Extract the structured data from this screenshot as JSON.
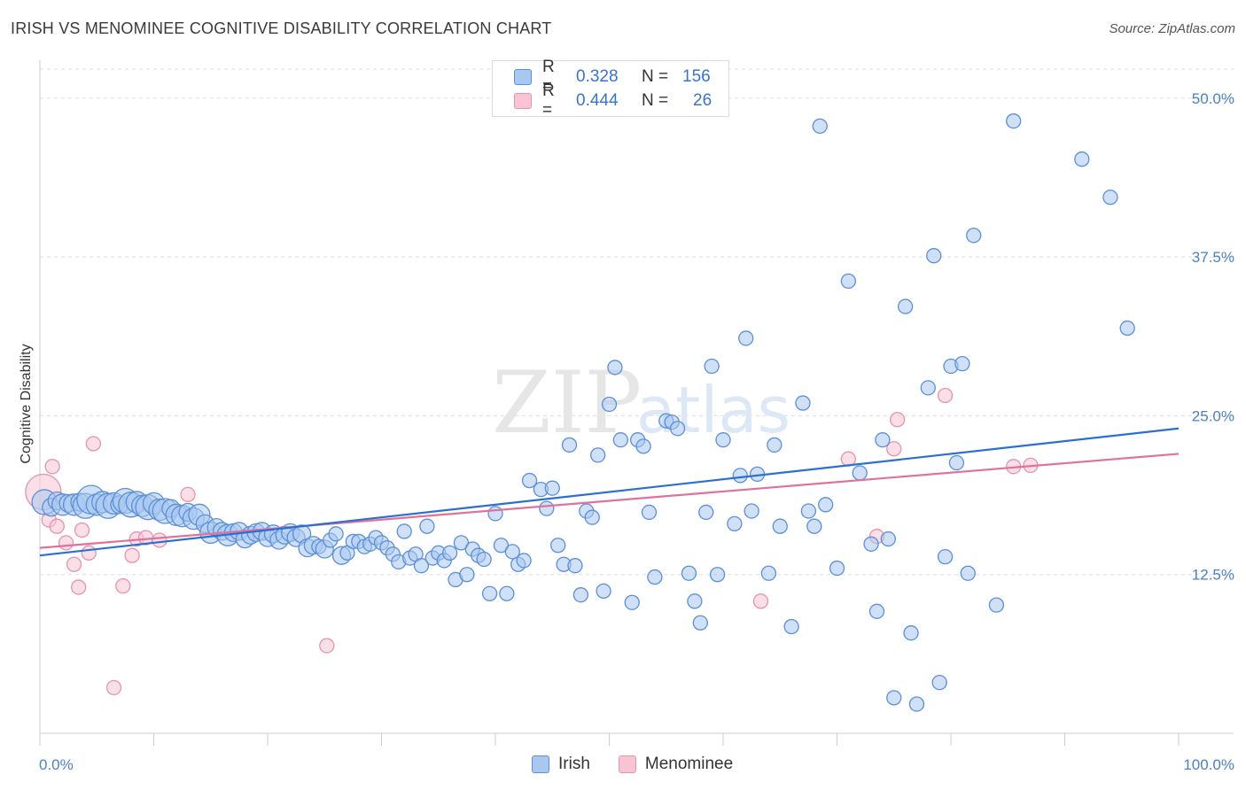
{
  "title": "IRISH VS MENOMINEE COGNITIVE DISABILITY CORRELATION CHART",
  "source": "Source: ZipAtlas.com",
  "watermark": {
    "part1": "ZIP",
    "part2": "atlas"
  },
  "colors": {
    "irish_fill": "#a9c8f0",
    "irish_stroke": "#5b8fd8",
    "irish_line": "#2b6fd0",
    "menominee_fill": "#f8c4d4",
    "menominee_stroke": "#e593ad",
    "menominee_line": "#e0719a",
    "tick_text": "#4a80c8",
    "grid": "#dddddd"
  },
  "legend": {
    "rows": [
      {
        "r_label": "R =",
        "r_value": "0.328",
        "n_label": "N =",
        "n_value": "156"
      },
      {
        "r_label": "R =",
        "r_value": "0.444",
        "n_label": "N =",
        "n_value": "26"
      }
    ]
  },
  "bottom_legend": {
    "irish": "Irish",
    "menominee": "Menominee"
  },
  "chart_data": {
    "type": "scatter",
    "title": "IRISH VS MENOMINEE COGNITIVE DISABILITY CORRELATION CHART",
    "xlabel": "",
    "ylabel": "Cognitive Disability",
    "xlim": [
      0,
      100
    ],
    "ylim": [
      0,
      52.5
    ],
    "x_tick_labels": [
      "0.0%",
      "100.0%"
    ],
    "y_ticks": [
      12.5,
      25.0,
      37.5,
      50.0
    ],
    "y_tick_labels": [
      "12.5%",
      "25.0%",
      "37.5%",
      "50.0%"
    ],
    "grid": true,
    "legend_position": "top-center",
    "series": [
      {
        "name": "Irish",
        "r": 0.328,
        "n": 156,
        "trend": {
          "x": [
            0,
            100
          ],
          "y": [
            14.0,
            24.0
          ]
        },
        "points": [
          [
            0.4,
            18.2,
            14
          ],
          [
            1,
            17.8,
            10
          ],
          [
            1.5,
            18.3,
            10
          ],
          [
            2,
            18,
            12
          ],
          [
            2.5,
            18.1,
            10
          ],
          [
            3,
            18,
            12
          ],
          [
            3.5,
            18.2,
            10
          ],
          [
            4,
            17.9,
            14
          ],
          [
            4.5,
            18.4,
            16
          ],
          [
            5,
            18,
            12
          ],
          [
            5.5,
            18.2,
            12
          ],
          [
            6,
            17.9,
            14
          ],
          [
            6.5,
            18.1,
            12
          ],
          [
            7,
            18,
            10
          ],
          [
            7.5,
            18.3,
            14
          ],
          [
            8,
            18,
            14
          ],
          [
            8.5,
            18.2,
            12
          ],
          [
            9,
            17.9,
            12
          ],
          [
            9.5,
            17.8,
            14
          ],
          [
            10,
            18.1,
            12
          ],
          [
            10.5,
            17.6,
            12
          ],
          [
            11,
            17.5,
            14
          ],
          [
            11.5,
            17.7,
            10
          ],
          [
            12,
            17.2,
            12
          ],
          [
            12.5,
            17.1,
            12
          ],
          [
            13,
            17.4,
            10
          ],
          [
            13.5,
            16.9,
            12
          ],
          [
            14,
            17.2,
            12
          ],
          [
            14.5,
            16.5,
            10
          ],
          [
            15,
            15.8,
            12
          ],
          [
            15.5,
            16.2,
            10
          ],
          [
            16,
            15.9,
            10
          ],
          [
            16.5,
            15.6,
            12
          ],
          [
            17,
            15.8,
            10
          ],
          [
            17.5,
            15.9,
            10
          ],
          [
            18,
            15.3,
            10
          ],
          [
            18.5,
            15.6,
            10
          ],
          [
            19,
            15.8,
            10
          ],
          [
            19.5,
            15.9,
            10
          ],
          [
            20,
            15.4,
            10
          ],
          [
            20.5,
            15.7,
            10
          ],
          [
            21,
            15.2,
            10
          ],
          [
            21.5,
            15.6,
            10
          ],
          [
            22,
            15.8,
            10
          ],
          [
            22.5,
            15.4,
            10
          ],
          [
            23,
            15.7,
            10
          ],
          [
            23.5,
            14.6,
            10
          ],
          [
            24,
            14.8,
            10
          ],
          [
            24.5,
            14.7,
            8
          ],
          [
            25,
            14.5,
            10
          ],
          [
            25.5,
            15.2,
            8
          ],
          [
            26,
            15.7,
            8
          ],
          [
            26.5,
            14,
            10
          ],
          [
            27,
            14.2,
            8
          ],
          [
            27.5,
            15.1,
            8
          ],
          [
            28,
            15.1,
            8
          ],
          [
            28.5,
            14.7,
            8
          ],
          [
            29,
            14.9,
            8
          ],
          [
            29.5,
            15.4,
            8
          ],
          [
            30,
            15,
            8
          ],
          [
            30.5,
            14.6,
            8
          ],
          [
            31,
            14.1,
            8
          ],
          [
            31.5,
            13.5,
            8
          ],
          [
            32,
            15.9,
            8
          ],
          [
            32.5,
            13.8,
            8
          ],
          [
            33,
            14.1,
            8
          ],
          [
            33.5,
            13.2,
            8
          ],
          [
            34,
            16.3,
            8
          ],
          [
            34.5,
            13.8,
            8
          ],
          [
            35,
            14.2,
            8
          ],
          [
            35.5,
            13.6,
            8
          ],
          [
            36,
            14.2,
            8
          ],
          [
            36.5,
            12.1,
            8
          ],
          [
            37,
            15,
            8
          ],
          [
            37.5,
            12.5,
            8
          ],
          [
            38,
            14.5,
            8
          ],
          [
            38.5,
            14,
            8
          ],
          [
            39,
            13.7,
            8
          ],
          [
            39.5,
            11,
            8
          ],
          [
            40,
            17.3,
            8
          ],
          [
            40.5,
            14.8,
            8
          ],
          [
            41,
            11,
            8
          ],
          [
            41.5,
            14.3,
            8
          ],
          [
            42,
            13.3,
            8
          ],
          [
            42.5,
            13.6,
            8
          ],
          [
            43,
            19.9,
            8
          ],
          [
            44,
            19.2,
            8
          ],
          [
            44.5,
            17.7,
            8
          ],
          [
            45,
            19.3,
            8
          ],
          [
            45.5,
            14.8,
            8
          ],
          [
            46,
            13.3,
            8
          ],
          [
            46.5,
            22.7,
            8
          ],
          [
            47,
            13.2,
            8
          ],
          [
            47.5,
            10.9,
            8
          ],
          [
            48,
            17.5,
            8
          ],
          [
            48.5,
            17,
            8
          ],
          [
            49,
            21.9,
            8
          ],
          [
            49.5,
            11.2,
            8
          ],
          [
            50,
            25.9,
            8
          ],
          [
            50.5,
            28.8,
            8
          ],
          [
            51,
            23.1,
            8
          ],
          [
            52,
            10.3,
            8
          ],
          [
            52.5,
            23.1,
            8
          ],
          [
            53,
            22.6,
            8
          ],
          [
            53.5,
            17.4,
            8
          ],
          [
            54,
            12.3,
            8
          ],
          [
            55,
            24.6,
            8
          ],
          [
            55.5,
            24.5,
            8
          ],
          [
            56,
            24.0,
            8
          ],
          [
            57,
            12.6,
            8
          ],
          [
            57.5,
            10.4,
            8
          ],
          [
            58,
            8.7,
            8
          ],
          [
            58.5,
            17.4,
            8
          ],
          [
            59,
            28.9,
            8
          ],
          [
            59.5,
            12.5,
            8
          ],
          [
            60,
            23.1,
            8
          ],
          [
            61,
            16.5,
            8
          ],
          [
            61.5,
            20.3,
            8
          ],
          [
            62,
            31.1,
            8
          ],
          [
            62.5,
            17.5,
            8
          ],
          [
            63,
            20.4,
            8
          ],
          [
            64,
            12.6,
            8
          ],
          [
            64.5,
            22.7,
            8
          ],
          [
            65,
            16.3,
            8
          ],
          [
            66,
            8.4,
            8
          ],
          [
            67,
            26,
            8
          ],
          [
            67.5,
            17.5,
            8
          ],
          [
            68,
            16.3,
            8
          ],
          [
            68.5,
            47.8,
            8
          ],
          [
            69,
            18,
            8
          ],
          [
            70,
            13,
            8
          ],
          [
            71,
            35.6,
            8
          ],
          [
            72,
            20.5,
            8
          ],
          [
            73,
            14.9,
            8
          ],
          [
            73.5,
            9.6,
            8
          ],
          [
            74,
            23.1,
            8
          ],
          [
            74.5,
            15.3,
            8
          ],
          [
            75,
            2.8,
            8
          ],
          [
            76,
            33.6,
            8
          ],
          [
            76.5,
            7.9,
            8
          ],
          [
            77,
            2.3,
            8
          ],
          [
            78,
            27.2,
            8
          ],
          [
            78.5,
            37.6,
            8
          ],
          [
            79,
            4,
            8
          ],
          [
            79.5,
            13.9,
            8
          ],
          [
            80,
            28.9,
            8
          ],
          [
            80.5,
            21.3,
            8
          ],
          [
            81,
            29.1,
            8
          ],
          [
            81.5,
            12.6,
            8
          ],
          [
            82,
            39.2,
            8
          ],
          [
            84,
            10.1,
            8
          ],
          [
            85.5,
            48.2,
            8
          ],
          [
            91.5,
            45.2,
            8
          ],
          [
            94,
            42.2,
            8
          ],
          [
            95.5,
            31.9,
            8
          ]
        ]
      },
      {
        "name": "Menominee",
        "r": 0.444,
        "n": 26,
        "trend": {
          "x": [
            0,
            100
          ],
          "y": [
            14.6,
            22.0
          ]
        },
        "points": [
          [
            0.3,
            19,
            20
          ],
          [
            0.8,
            16.8,
            8
          ],
          [
            1.1,
            21,
            8
          ],
          [
            1.5,
            16.3,
            8
          ],
          [
            2.3,
            15,
            8
          ],
          [
            3,
            13.3,
            8
          ],
          [
            3.4,
            11.5,
            8
          ],
          [
            3.7,
            16,
            8
          ],
          [
            4.3,
            14.2,
            8
          ],
          [
            4.7,
            22.8,
            8
          ],
          [
            6.5,
            3.6,
            8
          ],
          [
            7.3,
            11.6,
            8
          ],
          [
            8.1,
            14,
            8
          ],
          [
            8.5,
            15.3,
            8
          ],
          [
            9.3,
            15.4,
            8
          ],
          [
            10.5,
            15.2,
            8
          ],
          [
            13,
            18.8,
            8
          ],
          [
            25.2,
            6.9,
            8
          ],
          [
            63.3,
            10.4,
            8
          ],
          [
            71,
            21.6,
            8
          ],
          [
            73.5,
            15.5,
            8
          ],
          [
            75,
            22.4,
            8
          ],
          [
            75.3,
            24.7,
            8
          ],
          [
            79.5,
            26.6,
            8
          ],
          [
            85.5,
            21,
            8
          ],
          [
            87,
            21.1,
            8
          ]
        ]
      }
    ]
  }
}
